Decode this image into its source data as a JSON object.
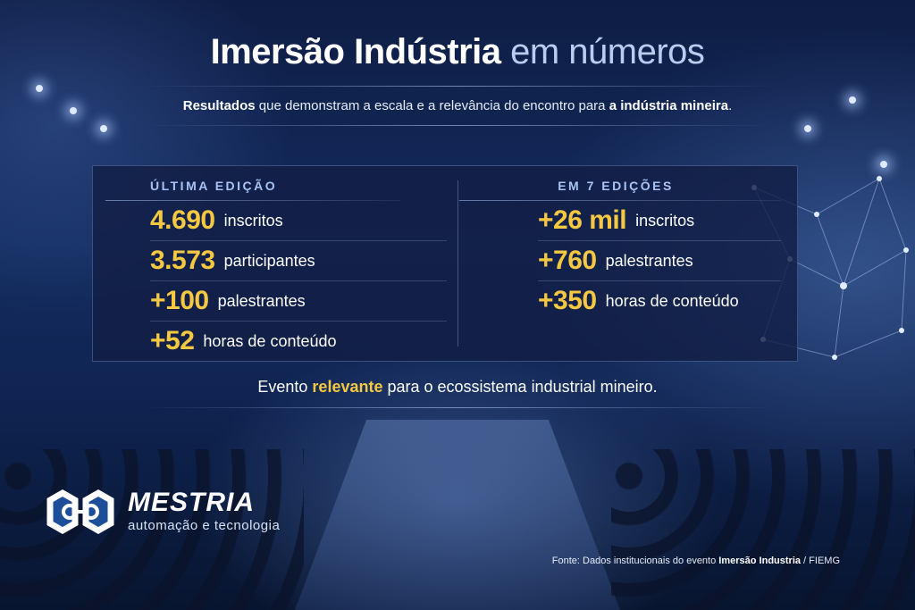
{
  "header": {
    "title_bold": "Imersão Indústria",
    "title_light": "em números",
    "subtitle_pre_bold": "Resultados",
    "subtitle_mid": " que demonstram a escala e a relevância do encontro para ",
    "subtitle_end_bold": "a indústria mineira",
    "subtitle_period": "."
  },
  "panel": {
    "left": {
      "heading": "ÚLTIMA EDIÇÃO",
      "stats": [
        {
          "value": "4.690",
          "label": "inscritos"
        },
        {
          "value": "3.573",
          "label": "participantes"
        },
        {
          "value": "+100",
          "label": "palestrantes"
        },
        {
          "value": "+52",
          "label": "horas de conteúdo"
        }
      ]
    },
    "right": {
      "heading": "EM 7 EDIÇÕES",
      "stats": [
        {
          "value": "+26 mil",
          "label": "inscritos"
        },
        {
          "value": "+760",
          "label": "palestrantes"
        },
        {
          "value": "+350",
          "label": "horas de conteúdo"
        }
      ]
    }
  },
  "tagline": {
    "pre": "Evento ",
    "highlight": "relevante",
    "post": " para o ecossistema industrial mineiro."
  },
  "brand": {
    "name": "MESTRIA",
    "tagline": "automação e tecnologia"
  },
  "source": {
    "pre": "Fonte: Dados institucionais do evento ",
    "bold": "Imersão Industria",
    "post": " / FIEMG"
  },
  "colors": {
    "accent_gold": "#f5c842",
    "heading_blue": "#a9c4f4",
    "background": "#0e1d45"
  }
}
